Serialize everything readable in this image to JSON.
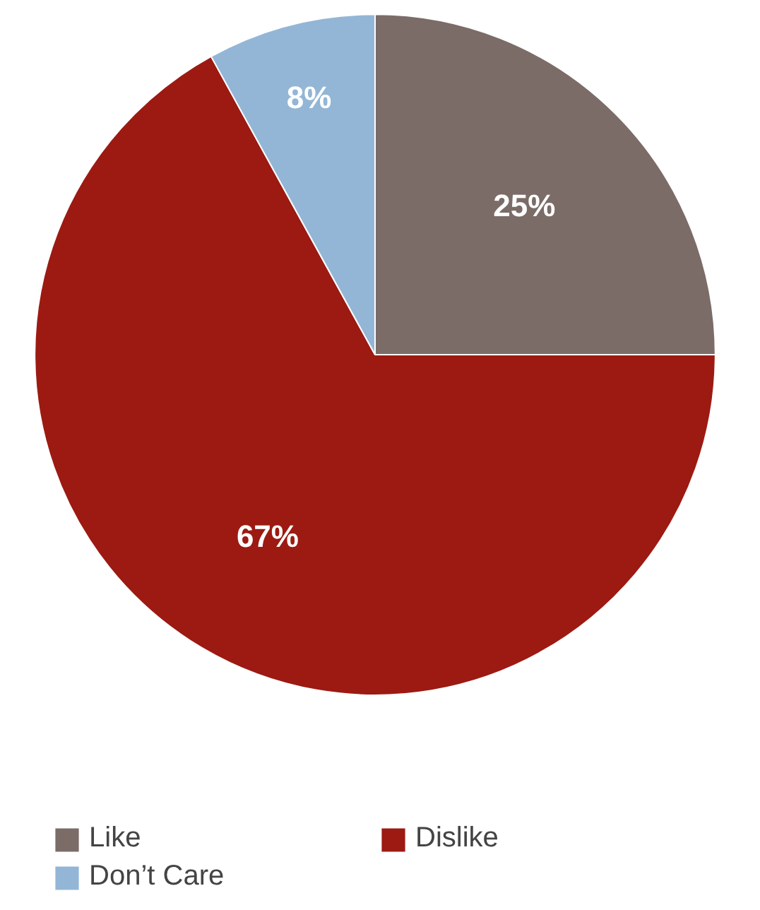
{
  "chart_data": {
    "type": "pie",
    "categories": [
      "Like",
      "Dislike",
      "Don’t Care"
    ],
    "values": [
      25,
      67,
      8
    ],
    "colors": [
      "#7b6c68",
      "#9c1a12",
      "#93b6d6"
    ],
    "value_labels": [
      "25%",
      "67%",
      "8%"
    ],
    "legend": "bottom"
  }
}
